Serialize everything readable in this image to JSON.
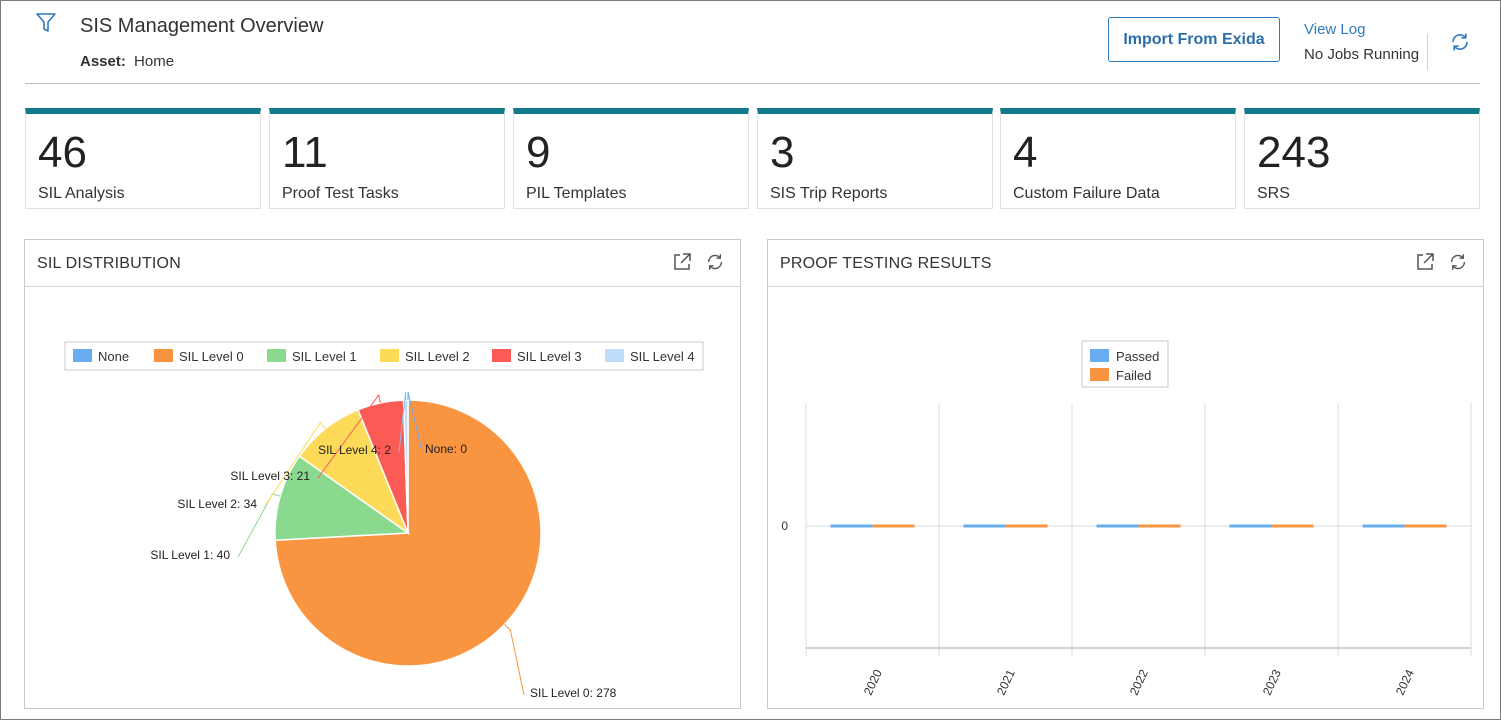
{
  "header": {
    "title": "SIS Management Overview",
    "asset_label": "Asset:",
    "asset_value": "Home",
    "import_button": "Import From Exida",
    "view_log": "View Log",
    "jobs_status": "No Jobs Running"
  },
  "tiles": [
    {
      "value": "46",
      "label": "SIL Analysis"
    },
    {
      "value": "11",
      "label": "Proof Test Tasks"
    },
    {
      "value": "9",
      "label": "PIL Templates"
    },
    {
      "value": "3",
      "label": "SIS Trip Reports"
    },
    {
      "value": "4",
      "label": "Custom Failure Data"
    },
    {
      "value": "243",
      "label": "SRS"
    }
  ],
  "panels": {
    "sil_title": "SIL DISTRIBUTION",
    "proof_title": "PROOF TESTING RESULTS"
  },
  "colors": {
    "accent": "#137a8c",
    "link": "#2e7bbf"
  },
  "chart_data": [
    {
      "type": "pie",
      "title": "",
      "legend_position": "top",
      "slices": [
        {
          "name": "None",
          "value": 0,
          "label": "None: 0",
          "color": "#6aacf2"
        },
        {
          "name": "SIL Level 0",
          "value": 278,
          "label": "SIL Level 0: 278",
          "color": "#f99540"
        },
        {
          "name": "SIL Level 1",
          "value": 40,
          "label": "SIL Level 1: 40",
          "color": "#8ad98f"
        },
        {
          "name": "SIL Level 2",
          "value": 34,
          "label": "SIL Level 2: 34",
          "color": "#fddb58"
        },
        {
          "name": "SIL Level 3",
          "value": 21,
          "label": "SIL Level 3: 21",
          "color": "#fb5b55"
        },
        {
          "name": "SIL Level 4",
          "value": 2,
          "label": "SIL Level 4: 2",
          "color": "#c0dcfb"
        }
      ]
    },
    {
      "type": "bar",
      "title": "",
      "legend_position": "top",
      "categories": [
        "2020",
        "2021",
        "2022",
        "2023",
        "2024"
      ],
      "series": [
        {
          "name": "Passed",
          "values": [
            0,
            0,
            0,
            0,
            0
          ],
          "color": "#6aacf2"
        },
        {
          "name": "Failed",
          "values": [
            0,
            0,
            0,
            0,
            0
          ],
          "color": "#f99540"
        }
      ],
      "y_ticks": [
        "0"
      ],
      "grid": true
    }
  ]
}
